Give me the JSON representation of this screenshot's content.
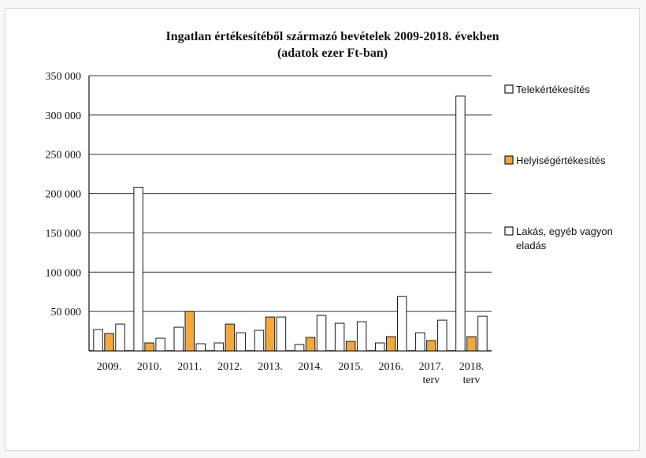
{
  "chart_data": {
    "type": "bar",
    "title": "Ingatlan értékesítéből származó bevételek 2009-2018. években",
    "subtitle": "(adatok ezer Ft-ban)",
    "categories": [
      [
        "2009."
      ],
      [
        "2010."
      ],
      [
        "2011."
      ],
      [
        "2012."
      ],
      [
        "2013."
      ],
      [
        "2014."
      ],
      [
        "2015."
      ],
      [
        "2016."
      ],
      [
        "2017.",
        "terv"
      ],
      [
        "2018.",
        "terv"
      ]
    ],
    "series": [
      {
        "name": "Telekértékesítés",
        "color": "#ffffff",
        "values": [
          27000,
          208000,
          30000,
          10000,
          26000,
          8000,
          35000,
          10000,
          23000,
          324000
        ]
      },
      {
        "name": "Helyiségértékesítés",
        "color": "#f2a93b",
        "values": [
          22000,
          10000,
          50000,
          34000,
          43000,
          17000,
          12000,
          18000,
          13000,
          18000
        ]
      },
      {
        "name": "Lakás, egyéb vagyon eladás",
        "legend_lines": [
          "Lakás, egyéb vagyon",
          "eladás"
        ],
        "color": "#ffffff",
        "values": [
          34000,
          16000,
          9000,
          23000,
          43000,
          45000,
          37000,
          69000,
          39000,
          44000
        ]
      }
    ],
    "yticks": [
      "350 000",
      "300 000",
      "250 000",
      "200 000",
      "150 000",
      "100 000",
      "50 000"
    ],
    "ytick_values": [
      350000,
      300000,
      250000,
      200000,
      150000,
      100000,
      50000
    ],
    "ylim": [
      0,
      350000
    ],
    "grid": true,
    "legend_position": "right"
  }
}
